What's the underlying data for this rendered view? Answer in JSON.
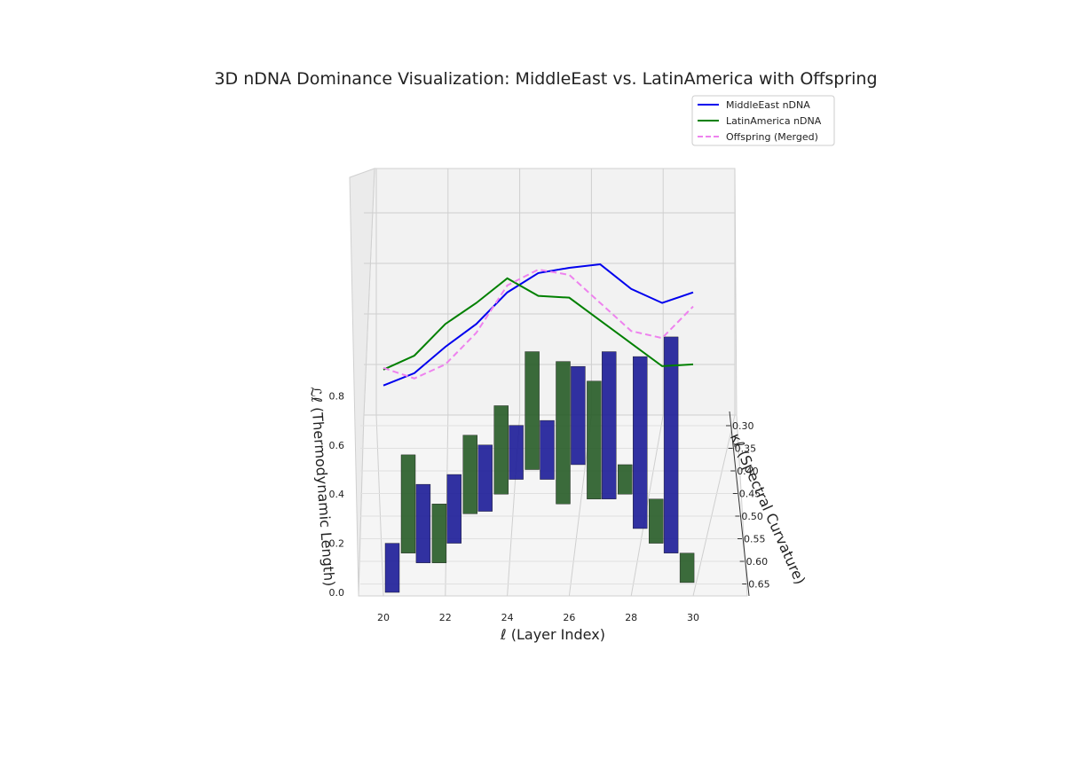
{
  "chart_data": {
    "type": "bar3d+line3d",
    "title": "3D nDNA Dominance Visualization: MiddleEast vs. LatinAmerica with Offspring",
    "xlabel": "ℓ (Layer Index)",
    "ylabel": "κℓ (Spectral Curvature)",
    "zlabel": "ℒℓ (Thermodynamic Length)",
    "x_ticks": [
      "20",
      "22",
      "24",
      "26",
      "28",
      "30"
    ],
    "y_ticks": [
      "0.30",
      "0.35",
      "0.40",
      "0.45",
      "0.50",
      "0.55",
      "0.60",
      "0.65"
    ],
    "z_ticks": [
      "0.0",
      "0.2",
      "0.4",
      "0.6",
      "0.8"
    ],
    "legend": {
      "placement": "top-right",
      "entries": [
        {
          "label": "MiddleEast nDNA",
          "color": "#0000ee",
          "style": "solid"
        },
        {
          "label": "LatinAmerica nDNA",
          "color": "#008000",
          "style": "solid"
        },
        {
          "label": "Offspring (Merged)",
          "color": "#ee82ee",
          "style": "dashed"
        }
      ]
    },
    "bar_colors": {
      "MiddleEast": "#1f1f99",
      "LatinAmerica": "#2a5e2a"
    },
    "layers": [
      20,
      21,
      22,
      23,
      24,
      25,
      26,
      27,
      28,
      29,
      30
    ],
    "series": [
      {
        "name": "MiddleEast nDNA",
        "values": [
          0.33,
          0.4,
          0.55,
          0.68,
          0.86,
          0.97,
          1.0,
          1.02,
          0.88,
          0.8,
          0.86
        ]
      },
      {
        "name": "LatinAmerica nDNA",
        "values": [
          0.42,
          0.5,
          0.68,
          0.8,
          0.94,
          0.84,
          0.83,
          0.7,
          0.57,
          0.44,
          0.45
        ]
      },
      {
        "name": "Offspring (Merged)",
        "values": [
          0.43,
          0.37,
          0.45,
          0.63,
          0.9,
          0.99,
          0.96,
          0.8,
          0.64,
          0.6,
          0.78
        ]
      }
    ],
    "bars": {
      "MiddleEast": [
        {
          "x": 20,
          "z0": 0.0,
          "z1": 0.2
        },
        {
          "x": 21,
          "z0": 0.12,
          "z1": 0.44
        },
        {
          "x": 22,
          "z0": 0.2,
          "z1": 0.48
        },
        {
          "x": 23,
          "z0": 0.33,
          "z1": 0.6
        },
        {
          "x": 24,
          "z0": 0.46,
          "z1": 0.68
        },
        {
          "x": 25,
          "z0": 0.46,
          "z1": 0.7
        },
        {
          "x": 26,
          "z0": 0.52,
          "z1": 0.92
        },
        {
          "x": 27,
          "z0": 0.38,
          "z1": 0.98
        },
        {
          "x": 28,
          "z0": 0.26,
          "z1": 0.96
        },
        {
          "x": 29,
          "z0": 0.16,
          "z1": 1.04
        }
      ],
      "LatinAmerica": [
        {
          "x": 20,
          "z0": 0.16,
          "z1": 0.56
        },
        {
          "x": 21,
          "z0": 0.12,
          "z1": 0.36
        },
        {
          "x": 22,
          "z0": 0.32,
          "z1": 0.64
        },
        {
          "x": 23,
          "z0": 0.4,
          "z1": 0.76
        },
        {
          "x": 24,
          "z0": 0.5,
          "z1": 0.98
        },
        {
          "x": 25,
          "z0": 0.36,
          "z1": 0.94
        },
        {
          "x": 26,
          "z0": 0.38,
          "z1": 0.86
        },
        {
          "x": 27,
          "z0": 0.4,
          "z1": 0.52
        },
        {
          "x": 28,
          "z0": 0.2,
          "z1": 0.38
        },
        {
          "x": 29,
          "z0": 0.04,
          "z1": 0.16
        }
      ]
    }
  }
}
